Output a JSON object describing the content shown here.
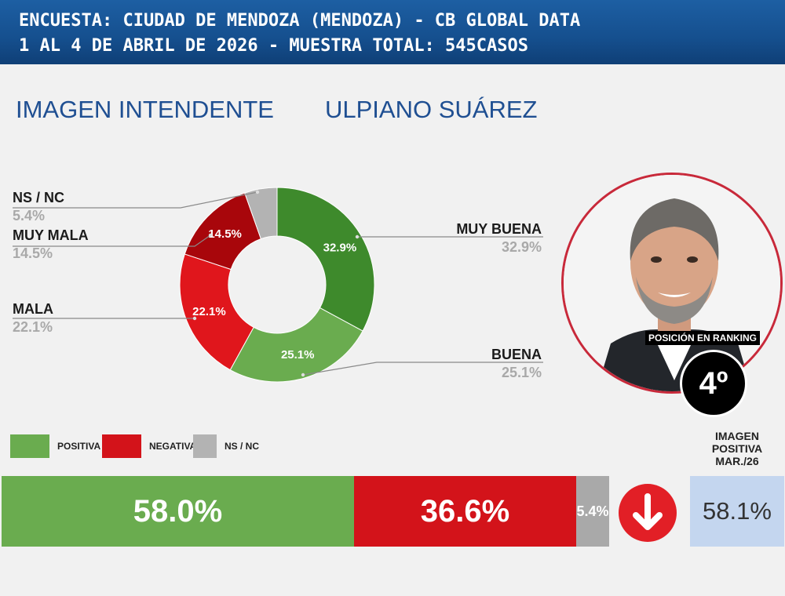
{
  "header": {
    "line1": "ENCUESTA: CIUDAD DE MENDOZA (MENDOZA) - CB GLOBAL DATA",
    "line2": "1 AL 4 DE ABRIL DE 2026 - MUESTRA TOTAL: 545CASOS"
  },
  "titles": {
    "left": "IMAGEN INTENDENTE",
    "right": "ULPIANO SUÁREZ"
  },
  "chart_data": [
    {
      "type": "pie",
      "title": "",
      "categories": [
        "MUY BUENA",
        "BUENA",
        "MALA",
        "MUY MALA",
        "NS / NC"
      ],
      "values": [
        32.9,
        25.1,
        22.1,
        14.5,
        5.4
      ],
      "labels": [
        "32.9%",
        "25.1%",
        "22.1%",
        "14.5%",
        "5.4%"
      ],
      "colors": [
        "#3e8a2c",
        "#6aac4f",
        "#e0161c",
        "#a8060b",
        "#b3b3b3"
      ],
      "donut": true
    },
    {
      "type": "bar",
      "orientation": "horizontal-stacked",
      "categories": [
        "POSITIVA",
        "NEGATIVA",
        "NS / NC"
      ],
      "values": [
        58.0,
        36.6,
        5.4
      ],
      "labels": [
        "58.0%",
        "36.6%",
        "5.4%"
      ],
      "colors": [
        "#6aac4f",
        "#d3131a",
        "#a9a9a9"
      ]
    }
  ],
  "legend": [
    {
      "label": "POSITIVA",
      "color": "#6aac4f"
    },
    {
      "label": "NEGATIVA",
      "color": "#d3131a"
    },
    {
      "label": "NS / NC",
      "color": "#b3b3b3"
    }
  ],
  "ranking": {
    "label": "POSICIÓN EN RANKING",
    "value": "4º"
  },
  "trend": {
    "direction": "down",
    "icon": "arrow-down-icon"
  },
  "previous": {
    "title_line1": "IMAGEN",
    "title_line2": "POSITIVA",
    "title_line3": "MAR./26",
    "value": "58.1%"
  }
}
